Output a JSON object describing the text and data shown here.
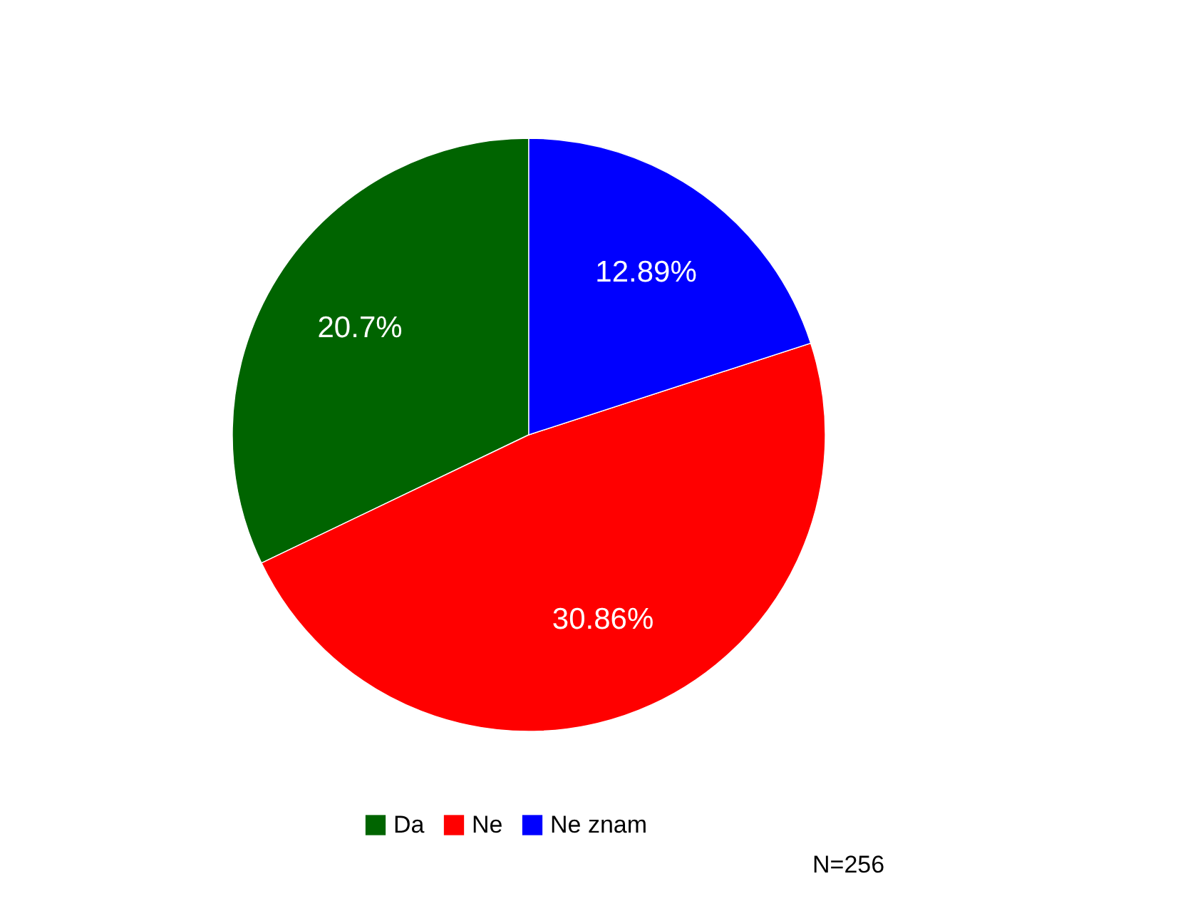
{
  "chart_data": {
    "type": "pie",
    "categories": [
      "Da",
      "Ne",
      "Ne znam"
    ],
    "values": [
      20.7,
      30.86,
      12.89
    ],
    "colors": [
      "#006400",
      "#ff0000",
      "#0000ff"
    ],
    "value_labels": [
      "20.7%",
      "30.86%",
      "12.89%"
    ],
    "legend": "bottom",
    "annotations": [
      "N=256"
    ]
  }
}
